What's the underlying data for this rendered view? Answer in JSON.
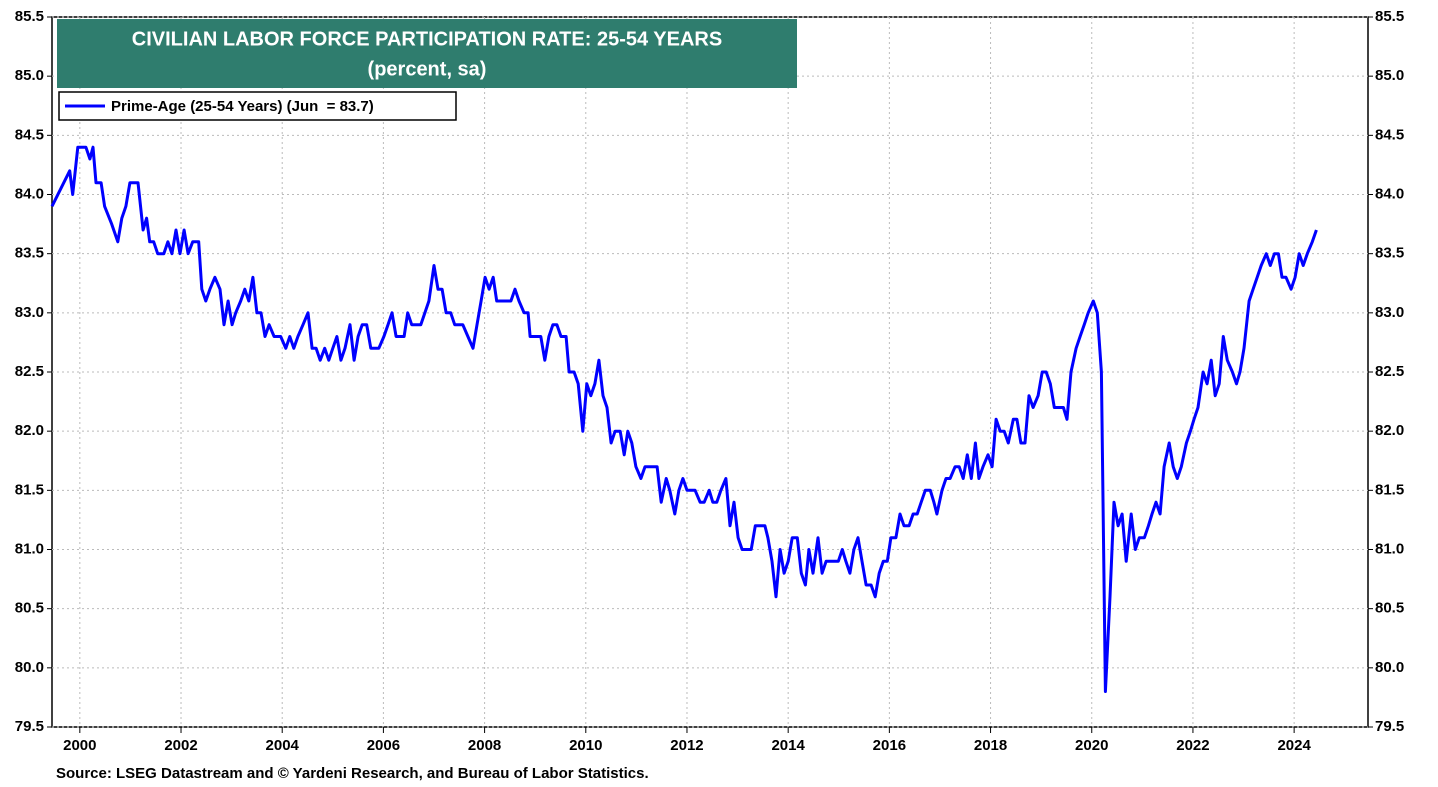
{
  "chart_data": {
    "type": "line",
    "title": "CIVILIAN LABOR FORCE PARTICIPATION RATE: 25-54 YEARS",
    "subtitle": "(percent, sa)",
    "source": "Source: LSEG Datastream and © Yardeni Research, and Bureau of Labor Statistics.",
    "legend": "upper left",
    "grid": true,
    "xlim": [
      1999.45,
      2025.46
    ],
    "xticks": [
      2000,
      2002,
      2004,
      2006,
      2008,
      2010,
      2012,
      2014,
      2016,
      2018,
      2020,
      2022,
      2024
    ],
    "ylim": [
      79.5,
      85.5
    ],
    "yticks": [
      79.5,
      {
        "value": 80,
        "label": "80.0"
      },
      80.5,
      {
        "value": 81,
        "label": "81.0"
      },
      81.5,
      {
        "value": 82,
        "label": "82.0"
      },
      82.5,
      {
        "value": 83,
        "label": "83.0"
      },
      83.5,
      {
        "value": 84,
        "label": "84.0"
      },
      84.5,
      {
        "value": 85,
        "label": "85.0"
      },
      85.5
    ],
    "x": [
      1999.45,
      1999.8,
      1999.86,
      1999.96,
      2000.12,
      2000.2,
      2000.26,
      2000.32,
      2000.42,
      2000.49,
      2000.63,
      2000.75,
      2000.83,
      2000.91,
      2000.99,
      2001.15,
      2001.25,
      2001.32,
      2001.38,
      2001.46,
      2001.54,
      2001.66,
      2001.74,
      2001.82,
      2001.9,
      2001.98,
      2002.06,
      2002.14,
      2002.23,
      2002.35,
      2002.41,
      2002.49,
      2002.57,
      2002.67,
      2002.77,
      2002.85,
      2002.93,
      2003.01,
      2003.08,
      2003.18,
      2003.26,
      2003.34,
      2003.42,
      2003.5,
      2003.58,
      2003.66,
      2003.74,
      2003.84,
      2003.97,
      2004.07,
      2004.15,
      2004.23,
      2004.31,
      2004.41,
      2004.51,
      2004.59,
      2004.67,
      2004.75,
      2004.84,
      2004.92,
      2005.0,
      2005.08,
      2005.16,
      2005.24,
      2005.34,
      2005.42,
      2005.5,
      2005.58,
      2005.67,
      2005.75,
      2005.91,
      2006.01,
      2006.09,
      2006.17,
      2006.25,
      2006.41,
      2006.48,
      2006.56,
      2006.74,
      2006.82,
      2006.9,
      2007.0,
      2007.08,
      2007.16,
      2007.24,
      2007.33,
      2007.41,
      2007.57,
      2007.67,
      2007.77,
      2007.85,
      2007.93,
      2008.01,
      2008.09,
      2008.17,
      2008.24,
      2008.42,
      2008.52,
      2008.6,
      2008.68,
      2008.78,
      2008.86,
      2008.9,
      2009.04,
      2009.11,
      2009.19,
      2009.27,
      2009.35,
      2009.43,
      2009.51,
      2009.61,
      2009.67,
      2009.77,
      2009.85,
      2009.94,
      2010.02,
      2010.1,
      2010.18,
      2010.26,
      2010.34,
      2010.42,
      2010.5,
      2010.58,
      2010.68,
      2010.76,
      2010.83,
      2010.91,
      2010.99,
      2011.09,
      2011.17,
      2011.41,
      2011.49,
      2011.59,
      2011.66,
      2011.76,
      2011.84,
      2011.92,
      2012.0,
      2012.16,
      2012.26,
      2012.34,
      2012.44,
      2012.51,
      2012.59,
      2012.67,
      2012.77,
      2012.85,
      2012.93,
      2013.01,
      2013.09,
      2013.27,
      2013.35,
      2013.54,
      2013.6,
      2013.68,
      2013.76,
      2013.84,
      2013.92,
      2014.0,
      2014.08,
      2014.18,
      2014.26,
      2014.34,
      2014.41,
      2014.49,
      2014.59,
      2014.67,
      2014.75,
      2014.99,
      2015.07,
      2015.14,
      2015.22,
      2015.3,
      2015.38,
      2015.46,
      2015.54,
      2015.64,
      2015.72,
      2015.8,
      2015.88,
      2015.96,
      2016.03,
      2016.13,
      2016.21,
      2016.29,
      2016.39,
      2016.47,
      2016.55,
      2016.63,
      2016.71,
      2016.81,
      2016.88,
      2016.94,
      2017.04,
      2017.12,
      2017.2,
      2017.3,
      2017.38,
      2017.46,
      2017.54,
      2017.62,
      2017.7,
      2017.77,
      2017.85,
      2017.95,
      2018.03,
      2018.11,
      2018.19,
      2018.27,
      2018.35,
      2018.45,
      2018.52,
      2018.6,
      2018.68,
      2018.76,
      2018.84,
      2018.94,
      2019.02,
      2019.1,
      2019.18,
      2019.26,
      2019.44,
      2019.51,
      2019.59,
      2019.69,
      2019.77,
      2019.85,
      2019.93,
      2020.03,
      2020.11,
      2020.19,
      2020.27,
      2020.36,
      2020.44,
      2020.52,
      2020.6,
      2020.68,
      2020.78,
      2020.86,
      2020.94,
      2021.04,
      2021.12,
      2021.19,
      2021.27,
      2021.35,
      2021.43,
      2021.53,
      2021.61,
      2021.69,
      2021.77,
      2021.87,
      2021.95,
      2022.02,
      2022.1,
      2022.2,
      2022.28,
      2022.36,
      2022.44,
      2022.52,
      2022.6,
      2022.68,
      2022.78,
      2022.86,
      2022.93,
      2023.01,
      2023.11,
      2023.19,
      2023.27,
      2023.35,
      2023.45,
      2023.53,
      2023.61,
      2023.69,
      2023.76,
      2023.84,
      2023.94,
      2024.02,
      2024.1,
      2024.18,
      2024.26,
      2024.36,
      2024.44
    ],
    "series": [
      {
        "name": "Prime-Age (25-54 Years) (Jun  = 83.7)",
        "color": "#0000ff",
        "values": [
          83.9,
          84.2,
          84.0,
          84.4,
          84.4,
          84.3,
          84.4,
          84.1,
          84.1,
          83.9,
          83.75,
          83.6,
          83.8,
          83.9,
          84.1,
          84.1,
          83.7,
          83.8,
          83.6,
          83.6,
          83.5,
          83.5,
          83.6,
          83.5,
          83.7,
          83.5,
          83.7,
          83.5,
          83.6,
          83.6,
          83.2,
          83.1,
          83.2,
          83.3,
          83.2,
          82.9,
          83.1,
          82.9,
          83.0,
          83.1,
          83.2,
          83.1,
          83.3,
          83.0,
          83.0,
          82.8,
          82.9,
          82.8,
          82.8,
          82.7,
          82.8,
          82.7,
          82.8,
          82.9,
          83.0,
          82.7,
          82.7,
          82.6,
          82.7,
          82.6,
          82.7,
          82.8,
          82.6,
          82.7,
          82.9,
          82.6,
          82.8,
          82.9,
          82.9,
          82.7,
          82.7,
          82.8,
          82.9,
          83.0,
          82.8,
          82.8,
          83.0,
          82.9,
          82.9,
          83.0,
          83.1,
          83.4,
          83.2,
          83.2,
          83.0,
          83.0,
          82.9,
          82.9,
          82.8,
          82.7,
          82.9,
          83.1,
          83.3,
          83.2,
          83.3,
          83.1,
          83.1,
          83.1,
          83.2,
          83.1,
          83.0,
          83.0,
          82.8,
          82.8,
          82.8,
          82.6,
          82.8,
          82.9,
          82.9,
          82.8,
          82.8,
          82.5,
          82.5,
          82.4,
          82.0,
          82.4,
          82.3,
          82.4,
          82.6,
          82.3,
          82.2,
          81.9,
          82.0,
          82.0,
          81.8,
          82.0,
          81.9,
          81.7,
          81.6,
          81.7,
          81.7,
          81.4,
          81.6,
          81.5,
          81.3,
          81.5,
          81.6,
          81.5,
          81.5,
          81.4,
          81.4,
          81.5,
          81.4,
          81.4,
          81.5,
          81.6,
          81.2,
          81.4,
          81.1,
          81.0,
          81.0,
          81.2,
          81.2,
          81.1,
          80.9,
          80.6,
          81.0,
          80.8,
          80.9,
          81.1,
          81.1,
          80.8,
          80.7,
          81.0,
          80.8,
          81.1,
          80.8,
          80.9,
          80.9,
          81.0,
          80.9,
          80.8,
          81.0,
          81.1,
          80.9,
          80.7,
          80.7,
          80.6,
          80.8,
          80.9,
          80.9,
          81.1,
          81.1,
          81.3,
          81.2,
          81.2,
          81.3,
          81.3,
          81.4,
          81.5,
          81.5,
          81.4,
          81.3,
          81.5,
          81.6,
          81.6,
          81.7,
          81.7,
          81.6,
          81.8,
          81.6,
          81.9,
          81.6,
          81.7,
          81.8,
          81.7,
          82.1,
          82.0,
          82.0,
          81.9,
          82.1,
          82.1,
          81.9,
          81.9,
          82.3,
          82.2,
          82.3,
          82.5,
          82.5,
          82.4,
          82.2,
          82.2,
          82.1,
          82.5,
          82.7,
          82.8,
          82.9,
          83.0,
          83.1,
          83.0,
          82.5,
          79.8,
          80.6,
          81.4,
          81.2,
          81.3,
          80.9,
          81.3,
          81.0,
          81.1,
          81.1,
          81.2,
          81.3,
          81.4,
          81.3,
          81.7,
          81.9,
          81.7,
          81.6,
          81.7,
          81.9,
          82.0,
          82.1,
          82.2,
          82.5,
          82.4,
          82.6,
          82.3,
          82.4,
          82.8,
          82.6,
          82.5,
          82.4,
          82.5,
          82.7,
          83.1,
          83.2,
          83.3,
          83.4,
          83.5,
          83.4,
          83.5,
          83.5,
          83.3,
          83.3,
          83.2,
          83.3,
          83.5,
          83.4,
          83.5,
          83.6,
          83.7
        ]
      }
    ]
  }
}
